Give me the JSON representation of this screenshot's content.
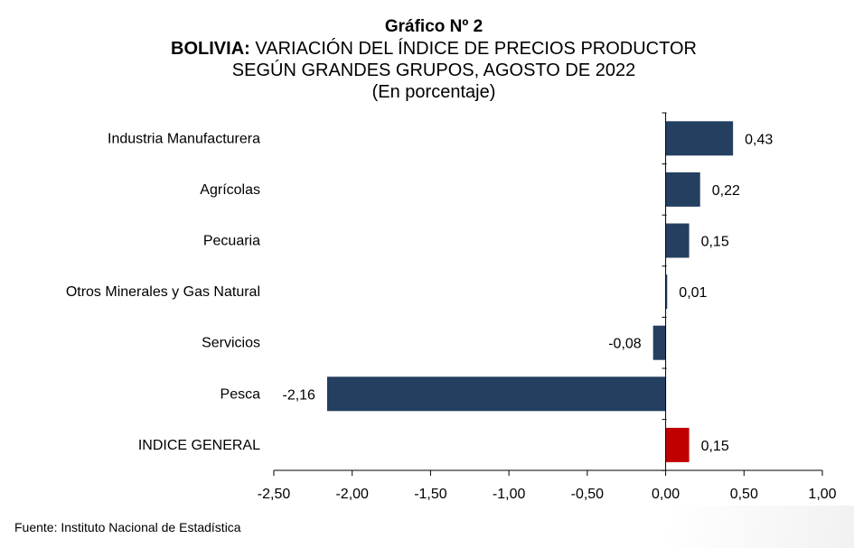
{
  "titles": {
    "line1": "Gráfico Nº 2",
    "line2_bold": "BOLIVIA:",
    "line2_rest": " VARIACIÓN DEL ÍNDICE DE PRECIOS PRODUCTOR",
    "line3": "SEGÚN GRANDES GRUPOS, AGOSTO DE 2022",
    "line4": "(En porcentaje)"
  },
  "source": "Fuente: Instituto Nacional de Estadística",
  "chart_data": {
    "type": "bar",
    "orientation": "horizontal",
    "categories": [
      "Industria Manufacturera",
      "Agrícolas",
      "Pecuaria",
      "Otros Minerales y Gas Natural",
      "Servicios",
      "Pesca",
      "INDICE GENERAL"
    ],
    "values": [
      0.43,
      0.22,
      0.15,
      0.01,
      -0.08,
      -2.16,
      0.15
    ],
    "value_labels": [
      "0,43",
      "0,22",
      "0,15",
      "0,01",
      "-0,08",
      "-2,16",
      "0,15"
    ],
    "xlim": [
      -2.5,
      1.0
    ],
    "xticks": [
      -2.5,
      -2.0,
      -1.5,
      -1.0,
      -0.5,
      0.0,
      0.5,
      1.0
    ],
    "xtick_labels": [
      "-2,50",
      "-2,00",
      "-1,50",
      "-1,00",
      "-0,50",
      "0,00",
      "0,50",
      "1,00"
    ],
    "colors": {
      "default": "#243f60",
      "highlight": "#c00000"
    },
    "highlight_category": "INDICE GENERAL",
    "grid": false,
    "legend": "none"
  }
}
